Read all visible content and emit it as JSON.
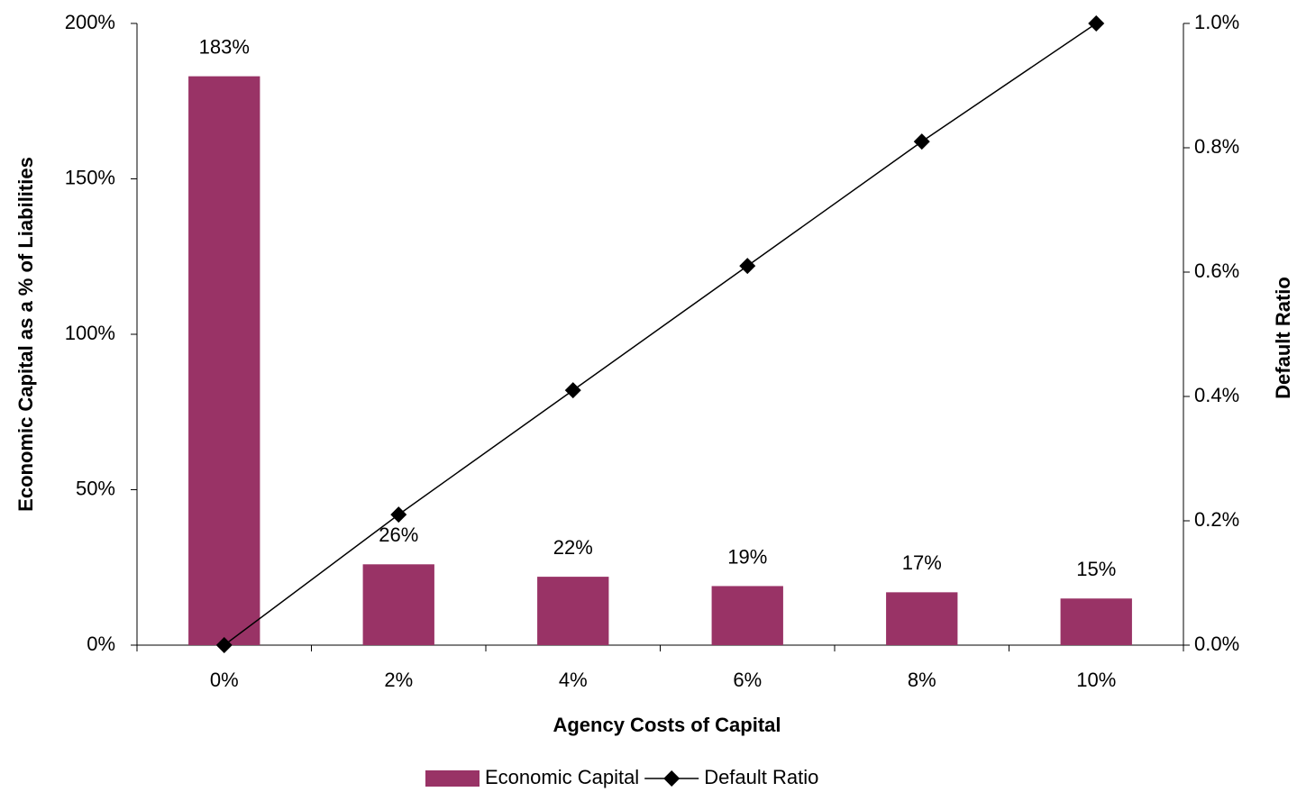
{
  "chart_data": {
    "type": "bar",
    "x_label": "Agency Costs of Capital",
    "y_label": "Economic Capital as a % of Liabilities",
    "y2_label": "Default Ratio",
    "categories": [
      "0%",
      "2%",
      "4%",
      "6%",
      "8%",
      "10%"
    ],
    "series": [
      {
        "name": "Economic Capital",
        "type": "bar",
        "color": "#993366",
        "values": [
          183,
          26,
          22,
          19,
          17,
          15
        ],
        "value_labels": [
          "183%",
          "26%",
          "22%",
          "19%",
          "17%",
          "15%"
        ]
      },
      {
        "name": "Default Ratio",
        "type": "line",
        "axis": "y2",
        "color": "#000000",
        "values": [
          0,
          0.21,
          0.41,
          0.61,
          0.81,
          1.0
        ]
      }
    ],
    "ylim": [
      0,
      200
    ],
    "yticks": [
      {
        "value": 0,
        "label": "0%"
      },
      {
        "value": 50,
        "label": "50%"
      },
      {
        "value": 100,
        "label": "100%"
      },
      {
        "value": 150,
        "label": "150%"
      },
      {
        "value": 200,
        "label": "200%"
      }
    ],
    "y2lim": [
      0,
      1.0
    ],
    "y2ticks": [
      {
        "value": 0,
        "label": "0.0%"
      },
      {
        "value": 0.2,
        "label": "0.2%"
      },
      {
        "value": 0.4,
        "label": "0.4%"
      },
      {
        "value": 0.6,
        "label": "0.6%"
      },
      {
        "value": 0.8,
        "label": "0.8%"
      },
      {
        "value": 1.0,
        "label": "1.0%"
      }
    ],
    "grid": false,
    "legend": "bottom"
  }
}
